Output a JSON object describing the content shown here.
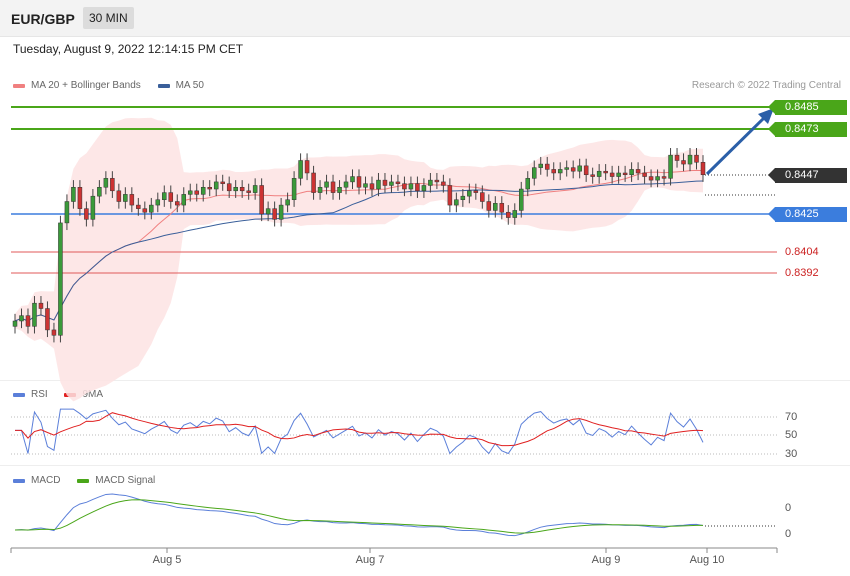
{
  "header": {
    "symbol": "EUR/GBP",
    "timeframe": "30 MIN",
    "datetime": "Tuesday, August 9, 2022 12:14:15 PM CET"
  },
  "credit": "Research © 2022 Trading Central",
  "legend_main": [
    {
      "label": "MA 20 + Bollinger Bands",
      "color": "#f08080"
    },
    {
      "label": "MA 50",
      "color": "#3a5f9a"
    }
  ],
  "legend_rsi": [
    {
      "label": "RSI",
      "color": "#5b7fd9"
    },
    {
      "label": "9MA",
      "color": "#e02020"
    }
  ],
  "legend_macd": [
    {
      "label": "MACD",
      "color": "#5b7fd9"
    },
    {
      "label": "MACD Signal",
      "color": "#4aa619"
    }
  ],
  "levels": {
    "r2": "0.8485",
    "r1": "0.8473",
    "last": "0.8447",
    "pivot": "0.8425",
    "s1": "0.8404",
    "s2": "0.8392"
  },
  "rsi_ticks": [
    "70",
    "50",
    "30"
  ],
  "macd_ticks": [
    "0",
    "0"
  ],
  "x_labels": [
    "Aug 5",
    "Aug 7",
    "Aug 9",
    "Aug 10"
  ],
  "colors": {
    "resistance": "#4aa619",
    "pivot": "#3b7ddd",
    "support": "#e05a5a",
    "last": "#333333",
    "arrow": "#2b5fa8",
    "up": "#3a9a3a",
    "down": "#cc3333"
  },
  "chart_data": {
    "type": "candlestick",
    "series_note": "EUR/GBP 30-minute bars, Aug 4 – Aug 9 2022 (approximate)",
    "closes": [
      0.8365,
      0.8368,
      0.8362,
      0.8375,
      0.8372,
      0.836,
      0.8357,
      0.842,
      0.8432,
      0.844,
      0.8428,
      0.8422,
      0.8435,
      0.844,
      0.8445,
      0.8438,
      0.8432,
      0.8436,
      0.843,
      0.8428,
      0.8426,
      0.843,
      0.8433,
      0.8437,
      0.8432,
      0.843,
      0.8436,
      0.8438,
      0.8436,
      0.844,
      0.8439,
      0.8443,
      0.8442,
      0.8438,
      0.844,
      0.8438,
      0.8437,
      0.8441,
      0.8425,
      0.8428,
      0.8422,
      0.843,
      0.8433,
      0.8445,
      0.8455,
      0.8448,
      0.8437,
      0.844,
      0.8443,
      0.8437,
      0.844,
      0.8443,
      0.8446,
      0.844,
      0.8442,
      0.8439,
      0.8444,
      0.8441,
      0.8443,
      0.8442,
      0.8439,
      0.8442,
      0.8438,
      0.8441,
      0.8444,
      0.8443,
      0.8441,
      0.843,
      0.8433,
      0.8435,
      0.8438,
      0.8437,
      0.8432,
      0.8427,
      0.8431,
      0.8426,
      0.8423,
      0.8427,
      0.8439,
      0.8445,
      0.8451,
      0.8453,
      0.845,
      0.8448,
      0.845,
      0.8451,
      0.8449,
      0.8452,
      0.8447,
      0.8446,
      0.8449,
      0.8448,
      0.8446,
      0.8448,
      0.8447,
      0.845,
      0.8448,
      0.8446,
      0.8444,
      0.8446,
      0.8445,
      0.8458,
      0.8455,
      0.8453,
      0.8458,
      0.8454,
      0.8447
    ],
    "rsi": {
      "range": [
        20,
        80
      ]
    },
    "y_axis": {
      "levels": [
        0.8485,
        0.8473,
        0.8447,
        0.8425,
        0.8404,
        0.8392
      ]
    }
  }
}
